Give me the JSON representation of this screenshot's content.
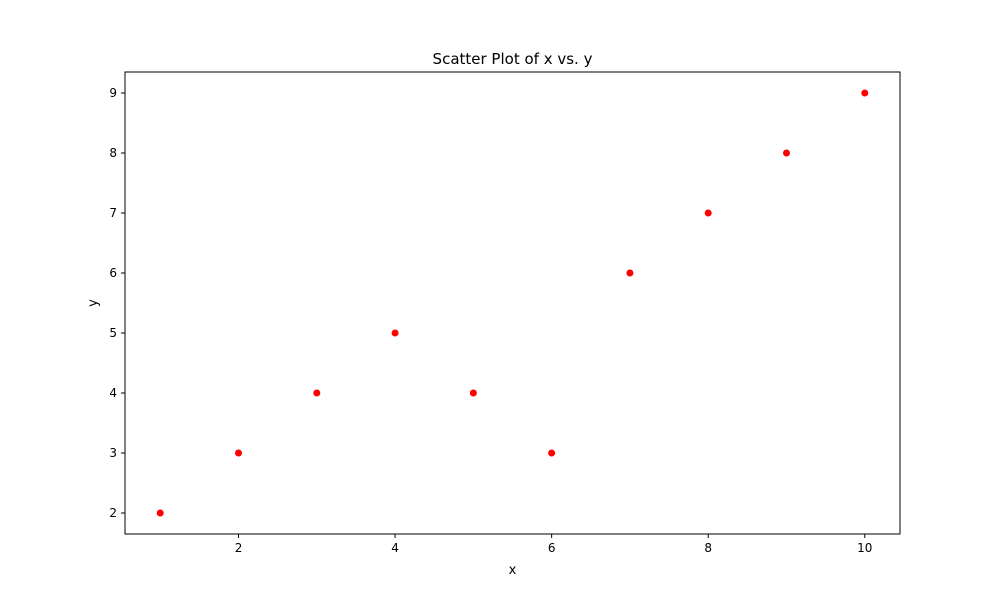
{
  "chart_data": {
    "type": "scatter",
    "title": "Scatter Plot of x vs. y",
    "xlabel": "x",
    "ylabel": "y",
    "x": [
      1,
      2,
      3,
      4,
      5,
      6,
      7,
      8,
      9,
      10
    ],
    "y": [
      2,
      3,
      4,
      5,
      4,
      3,
      6,
      7,
      8,
      9
    ],
    "xlim": [
      0.55,
      10.45
    ],
    "ylim": [
      1.65,
      9.35
    ],
    "xticks": [
      2,
      4,
      6,
      8,
      10
    ],
    "yticks": [
      2,
      3,
      4,
      5,
      6,
      7,
      8,
      9
    ],
    "marker_color": "#ff0000",
    "grid": false,
    "legend": "none"
  }
}
